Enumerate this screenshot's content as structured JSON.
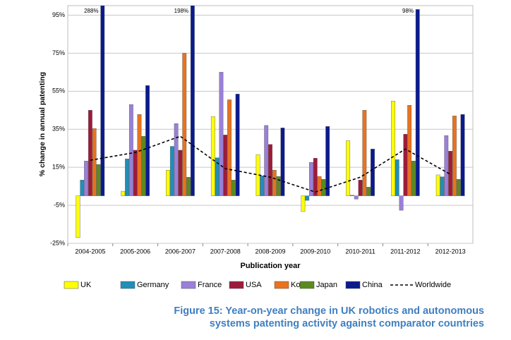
{
  "chart_data": {
    "type": "bar",
    "caption": "Figure 15: Year-on-year change in UK robotics and autonomous systems patenting activity against comparator countries",
    "xlabel": "Publication year",
    "ylabel": "% change in annual patenting",
    "categories": [
      "2004-2005",
      "2005-2006",
      "2006-2007",
      "2007-2008",
      "2008-2009",
      "2009-2010",
      "2010-2011",
      "2011-2012",
      "2012-2013"
    ],
    "ylim": [
      -25,
      100
    ],
    "yticks": [
      {
        "value": -25,
        "label": "-25%"
      },
      {
        "value": -5,
        "label": "-5%"
      },
      {
        "value": 15,
        "label": "15%"
      },
      {
        "value": 35,
        "label": "35%"
      },
      {
        "value": 55,
        "label": "55%"
      },
      {
        "value": 75,
        "label": "75%"
      },
      {
        "value": 95,
        "label": "95%"
      }
    ],
    "grid": true,
    "series": [
      {
        "name": "UK",
        "color": "#ffff00",
        "values": [
          -22,
          2.4,
          13.5,
          41.7,
          21.7,
          -8.3,
          29,
          49.8,
          11
        ]
      },
      {
        "name": "Germany",
        "color": "#1f8fb8",
        "values": [
          8.3,
          19.4,
          26,
          20,
          10.5,
          -2.4,
          0.3,
          19,
          10
        ]
      },
      {
        "name": "France",
        "color": "#9a80d8",
        "values": [
          18.3,
          48,
          38,
          65,
          37,
          17.6,
          -1.7,
          -7.6,
          31.7
        ]
      },
      {
        "name": "USA",
        "color": "#9e1a3a",
        "values": [
          45,
          24,
          24,
          32,
          27,
          19.8,
          8.3,
          32.4,
          23.5
        ]
      },
      {
        "name": "Korea",
        "color": "#e8731e",
        "values": [
          35.4,
          42.8,
          75,
          50.5,
          13.5,
          10.2,
          45,
          47.6,
          42
        ]
      },
      {
        "name": "Japan",
        "color": "#5b8a1e",
        "values": [
          16.5,
          31.3,
          9.8,
          8.3,
          10.2,
          8.7,
          4.6,
          18.3,
          8.7
        ]
      },
      {
        "name": "China",
        "color": "#0a1a8e",
        "values": [
          288,
          58,
          198,
          53.5,
          35.7,
          36.5,
          24.6,
          98,
          42.8
        ],
        "value_labels": [
          "288%",
          null,
          "198%",
          null,
          null,
          null,
          null,
          "98%",
          null
        ]
      },
      {
        "name": "Worldwide",
        "color": "#000000",
        "type": "line",
        "dashed": true,
        "values": [
          18.7,
          22.8,
          31.3,
          14.3,
          9.8,
          2,
          9.8,
          24.6,
          11.3
        ]
      }
    ]
  }
}
